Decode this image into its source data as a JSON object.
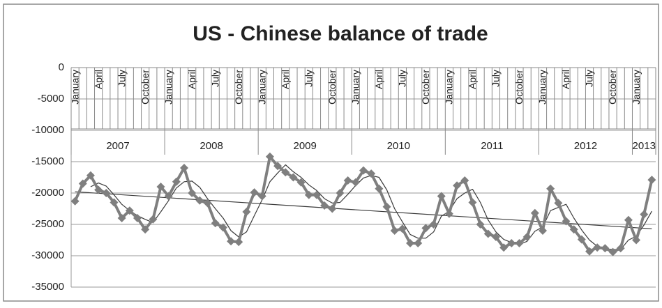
{
  "chart_data": {
    "type": "line",
    "title": "US - Chinese balance of trade",
    "categories": [
      "January",
      null,
      null,
      "April",
      null,
      null,
      "July",
      null,
      null,
      "October",
      null,
      null,
      "January",
      null,
      null,
      "April",
      null,
      null,
      "July",
      null,
      null,
      "October",
      null,
      null,
      "January",
      null,
      null,
      "April",
      null,
      null,
      "July",
      null,
      null,
      "October",
      null,
      null,
      "January",
      null,
      null,
      "April",
      null,
      null,
      "July",
      null,
      null,
      "October",
      null,
      null,
      "January",
      null,
      null,
      "April",
      null,
      null,
      "July",
      null,
      null,
      "October",
      null,
      null,
      "January",
      null,
      null,
      "April",
      null,
      null,
      "July",
      null,
      null,
      "October",
      null,
      null,
      "January",
      null,
      null
    ],
    "year_labels": [
      "2007",
      "2008",
      "2009",
      "2010",
      "2011",
      "2012",
      "2013"
    ],
    "series": [
      {
        "color": "#7f7f7f",
        "values": [
          -21300,
          -18500,
          -17200,
          -19500,
          -20000,
          -21500,
          -24000,
          -22800,
          -24000,
          -25800,
          -24200,
          -19000,
          -20500,
          -18200,
          -16000,
          -20000,
          -21200,
          -21600,
          -24800,
          -25500,
          -27700,
          -27800,
          -23000,
          -19900,
          -20500,
          -14200,
          -15700,
          -16700,
          -17500,
          -18300,
          -20300,
          -20300,
          -22000,
          -22500,
          -20000,
          -18000,
          -18300,
          -16400,
          -16900,
          -19300,
          -22200,
          -26000,
          -25700,
          -28000,
          -28000,
          -25600,
          -25000,
          -20500,
          -23300,
          -18800,
          -18000,
          -21500,
          -25000,
          -26500,
          -27000,
          -28700,
          -28000,
          -28000,
          -27000,
          -23200,
          -26000,
          -19300,
          -21600,
          -24500,
          -25800,
          -27400,
          -29300,
          -28700,
          -28800,
          -29400,
          -28800,
          -24300,
          -27500,
          -23400,
          -17900
        ]
      },
      {
        "color": "#3a3a3a",
        "values": [
          null,
          null,
          -19000,
          -18400,
          -18900,
          -20300,
          -21800,
          -22800,
          -23600,
          -24200,
          -24700,
          -23000,
          -21200,
          -19200,
          -18200,
          -18100,
          -19100,
          -20900,
          -22500,
          -24000,
          -26000,
          -27000,
          -26200,
          -23600,
          -21100,
          -18200,
          -16800,
          -15500,
          -16600,
          -17500,
          -18700,
          -19600,
          -20900,
          -21600,
          -21500,
          -20200,
          -18800,
          -17600,
          -17200,
          -17500,
          -19500,
          -22500,
          -24600,
          -26600,
          -27200,
          -27200,
          -26200,
          -23700,
          -22900,
          -20900,
          -20000,
          -19400,
          -21500,
          -24300,
          -26200,
          -27400,
          -27900,
          -28200,
          -27700,
          -26100,
          -25400,
          -22800,
          -22300,
          -21800,
          -24000,
          -25900,
          -27500,
          -28500,
          -28900,
          -29000,
          -29000,
          -27500,
          -26900,
          -25100,
          -22900
        ]
      }
    ],
    "trendline": {
      "color": "#3a3a3a",
      "values": [
        -19800,
        -25700
      ]
    },
    "ylim": [
      -35000,
      0
    ],
    "yticks": [
      0,
      -5000,
      -10000,
      -15000,
      -20000,
      -25000,
      -30000,
      -35000
    ],
    "grid": true
  }
}
